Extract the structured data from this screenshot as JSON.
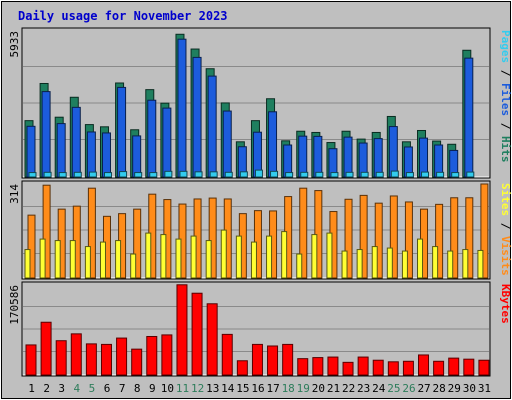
{
  "chart_data": [
    {
      "type": "bar",
      "title": "Daily usage for November 2023",
      "ymax_label": "5933",
      "ymax": 5933,
      "categories": [
        "1",
        "2",
        "3",
        "4",
        "5",
        "6",
        "7",
        "8",
        "9",
        "10",
        "11",
        "12",
        "13",
        "14",
        "15",
        "16",
        "17",
        "18",
        "19",
        "20",
        "21",
        "22",
        "23",
        "24",
        "25",
        "26",
        "27",
        "28",
        "29",
        "30",
        "31"
      ],
      "series": [
        {
          "name": "Hits",
          "values": [
            2290,
            3800,
            2430,
            3240,
            2130,
            2040,
            3820,
            1920,
            3550,
            3000,
            5800,
            5200,
            4400,
            3010,
            1430,
            2290,
            3180,
            1470,
            1860,
            1810,
            1400,
            1860,
            1540,
            1810,
            2460,
            1430,
            1890,
            1460,
            1330,
            5150,
            0
          ]
        },
        {
          "name": "Files",
          "values": [
            2060,
            3470,
            2170,
            2830,
            1830,
            1790,
            3640,
            1670,
            3120,
            2800,
            5600,
            4860,
            4100,
            2680,
            1230,
            1820,
            2650,
            1300,
            1660,
            1650,
            1150,
            1620,
            1380,
            1560,
            2050,
            1220,
            1580,
            1300,
            1080,
            4830,
            0
          ]
        },
        {
          "name": "Pages",
          "values": [
            180,
            190,
            180,
            190,
            200,
            180,
            220,
            180,
            180,
            230,
            230,
            210,
            210,
            190,
            210,
            280,
            230,
            180,
            190,
            190,
            180,
            190,
            190,
            190,
            240,
            180,
            200,
            190,
            180,
            200,
            0
          ]
        }
      ],
      "legend": [
        "Pages",
        "Files",
        "Hits"
      ],
      "legend_separator": " / ",
      "colors": {
        "Hits": "#1f7f5f",
        "Files": "#1c5cdc",
        "Pages": "#33ccee"
      }
    },
    {
      "type": "bar",
      "ymax_label": "314",
      "ymax": 314,
      "categories": [
        "1",
        "2",
        "3",
        "4",
        "5",
        "6",
        "7",
        "8",
        "9",
        "10",
        "11",
        "12",
        "13",
        "14",
        "15",
        "16",
        "17",
        "18",
        "19",
        "20",
        "21",
        "22",
        "23",
        "24",
        "25",
        "26",
        "27",
        "28",
        "29",
        "30",
        "31"
      ],
      "series": [
        {
          "name": "Visits",
          "values": [
            210,
            310,
            230,
            240,
            300,
            206,
            215,
            230,
            280,
            262,
            247,
            264,
            267,
            264,
            215,
            225,
            224,
            272,
            300,
            292,
            222,
            263,
            276,
            250,
            274,
            254,
            230,
            246,
            268,
            268,
            314
          ]
        },
        {
          "name": "Sites",
          "values": [
            95,
            130,
            125,
            125,
            105,
            120,
            125,
            80,
            150,
            145,
            130,
            140,
            125,
            160,
            140,
            120,
            140,
            155,
            80,
            145,
            150,
            90,
            95,
            105,
            100,
            90,
            130,
            105,
            90,
            95,
            92
          ]
        }
      ],
      "legend": [
        "Sites",
        "Visits"
      ],
      "legend_separator": " / ",
      "colors": {
        "Visits": "#ff8c1a",
        "Sites": "#ffff33"
      }
    },
    {
      "type": "bar",
      "ymax_label": "170586",
      "ymax": 170586,
      "categories": [
        "1",
        "2",
        "3",
        "4",
        "5",
        "6",
        "7",
        "8",
        "9",
        "10",
        "11",
        "12",
        "13",
        "14",
        "15",
        "16",
        "17",
        "18",
        "19",
        "20",
        "21",
        "22",
        "23",
        "24",
        "25",
        "26",
        "27",
        "28",
        "29",
        "30",
        "31"
      ],
      "series": [
        {
          "name": "KBytes",
          "values": [
            57000,
            100000,
            65000,
            78000,
            59000,
            58000,
            70000,
            49000,
            73000,
            76000,
            171000,
            155000,
            135000,
            77000,
            27000,
            58000,
            55000,
            58000,
            31000,
            33000,
            34000,
            24000,
            34000,
            28000,
            25000,
            26000,
            38000,
            26000,
            32000,
            30000,
            28000
          ]
        }
      ],
      "legend": [
        "KBytes"
      ],
      "colors": {
        "KBytes": "#ff0000"
      }
    }
  ],
  "x_axis": {
    "labels": [
      "1",
      "2",
      "3",
      "4",
      "5",
      "6",
      "7",
      "8",
      "9",
      "10",
      "11",
      "12",
      "13",
      "14",
      "15",
      "16",
      "17",
      "18",
      "19",
      "20",
      "21",
      "22",
      "23",
      "24",
      "25",
      "26",
      "27",
      "28",
      "29",
      "30",
      "31"
    ],
    "weekend_days": [
      4,
      5,
      11,
      12,
      18,
      19,
      25,
      26
    ],
    "weekend_color": "#2e7d5b",
    "weekday_color": "#000000"
  },
  "colors": {
    "page_bg": "#bfbfbf",
    "plot_bg": "#bfbfbf",
    "title_color": "#0000cc",
    "grid_color": "#8a8a8a"
  }
}
